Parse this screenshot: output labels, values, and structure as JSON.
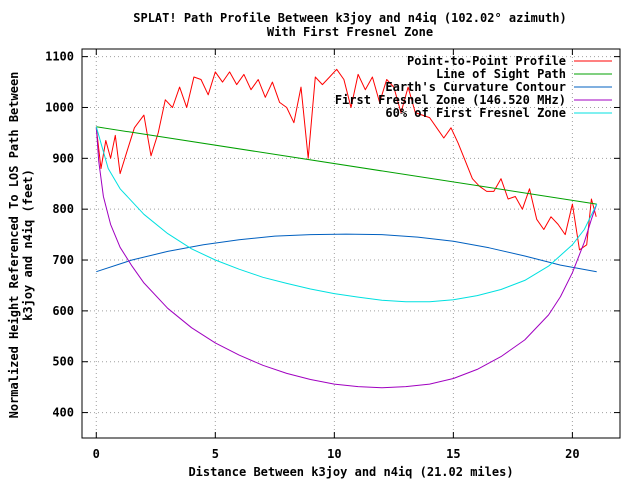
{
  "chart_data": {
    "type": "line",
    "title_line1": "SPLAT! Path Profile Between k3joy and n4iq (102.02° azimuth)",
    "title_line2": "With First Fresnel Zone",
    "xlabel": "Distance Between k3joy and n4iq (21.02 miles)",
    "ylabel_line1": "Normalized Height Referenced To LOS Path Between",
    "ylabel_line2": "k3joy and n4iq (feet)",
    "xlim": [
      -0.6,
      22
    ],
    "ylim": [
      350,
      1115
    ],
    "x_ticks": [
      0,
      5,
      10,
      15,
      20
    ],
    "x_tick_labels": [
      "0",
      "5",
      "10",
      "15",
      "20"
    ],
    "y_ticks": [
      400,
      500,
      600,
      700,
      800,
      900,
      1000,
      1100
    ],
    "y_tick_labels": [
      "400",
      "500",
      "600",
      "700",
      "800",
      "900",
      "1000",
      "1100"
    ],
    "grid": true,
    "legend_position": "top-right",
    "series": [
      {
        "name": "Point-to-Point Profile",
        "color": "#ff0000",
        "x": [
          0,
          0.2,
          0.4,
          0.6,
          0.8,
          1.0,
          1.3,
          1.6,
          2.0,
          2.3,
          2.6,
          2.9,
          3.2,
          3.5,
          3.8,
          4.1,
          4.4,
          4.7,
          5.0,
          5.3,
          5.6,
          5.9,
          6.2,
          6.5,
          6.8,
          7.1,
          7.4,
          7.7,
          8.0,
          8.3,
          8.6,
          8.9,
          9.2,
          9.5,
          9.8,
          10.1,
          10.4,
          10.7,
          11.0,
          11.3,
          11.6,
          11.9,
          12.2,
          12.5,
          12.8,
          13.1,
          13.4,
          13.7,
          14.0,
          14.3,
          14.6,
          14.9,
          15.2,
          15.5,
          15.8,
          16.1,
          16.4,
          16.7,
          17.0,
          17.3,
          17.6,
          17.9,
          18.2,
          18.5,
          18.8,
          19.1,
          19.4,
          19.7,
          20.0,
          20.3,
          20.6,
          20.8,
          21.0
        ],
        "y": [
          960,
          880,
          935,
          900,
          945,
          870,
          915,
          960,
          985,
          905,
          950,
          1015,
          1000,
          1040,
          1000,
          1060,
          1055,
          1025,
          1070,
          1050,
          1070,
          1045,
          1065,
          1035,
          1055,
          1020,
          1050,
          1010,
          1000,
          970,
          1040,
          900,
          1060,
          1045,
          1060,
          1075,
          1055,
          1000,
          1065,
          1035,
          1060,
          1010,
          1055,
          1040,
          990,
          1040,
          990,
          985,
          980,
          960,
          940,
          960,
          930,
          895,
          860,
          845,
          835,
          835,
          860,
          820,
          825,
          800,
          840,
          780,
          760,
          785,
          770,
          750,
          810,
          720,
          730,
          820,
          785
        ]
      },
      {
        "name": "Line of Sight Path",
        "color": "#00a000",
        "x": [
          0,
          21.02
        ],
        "y": [
          962,
          810
        ]
      },
      {
        "name": "Earth's Curvature Contour",
        "color": "#0060c0",
        "x": [
          0,
          1.5,
          3,
          4.5,
          6,
          7.5,
          9,
          10.5,
          12,
          13.5,
          15,
          16.5,
          18,
          19.5,
          21.02
        ],
        "y": [
          677,
          700,
          717,
          730,
          740,
          747,
          750,
          751,
          750,
          745,
          737,
          724,
          708,
          690,
          677
        ]
      },
      {
        "name": "First Fresnel Zone (146.520 MHz)",
        "color": "#a000c0",
        "x": [
          0,
          0.1,
          0.3,
          0.6,
          1,
          1.5,
          2,
          3,
          4,
          5,
          6,
          7,
          8,
          9,
          10,
          11,
          12,
          13,
          14,
          15,
          16,
          17,
          18,
          19,
          19.5,
          20,
          20.5,
          20.8,
          21.02
        ],
        "y": [
          962,
          895,
          825,
          770,
          725,
          688,
          655,
          605,
          567,
          537,
          513,
          493,
          477,
          465,
          456,
          451,
          449,
          451,
          456,
          467,
          485,
          510,
          543,
          592,
          628,
          675,
          735,
          780,
          810
        ]
      },
      {
        "name": "60% of First Fresnel Zone",
        "color": "#00e0e0",
        "x": [
          0,
          0.5,
          1,
          2,
          3,
          4,
          5,
          6,
          7,
          8,
          9,
          10,
          11,
          12,
          13,
          14,
          15,
          16,
          17,
          18,
          19,
          20,
          20.5,
          21.02
        ],
        "y": [
          962,
          880,
          840,
          790,
          752,
          722,
          700,
          682,
          666,
          654,
          643,
          634,
          627,
          621,
          618,
          618,
          622,
          630,
          642,
          660,
          688,
          730,
          760,
          810
        ]
      }
    ]
  }
}
